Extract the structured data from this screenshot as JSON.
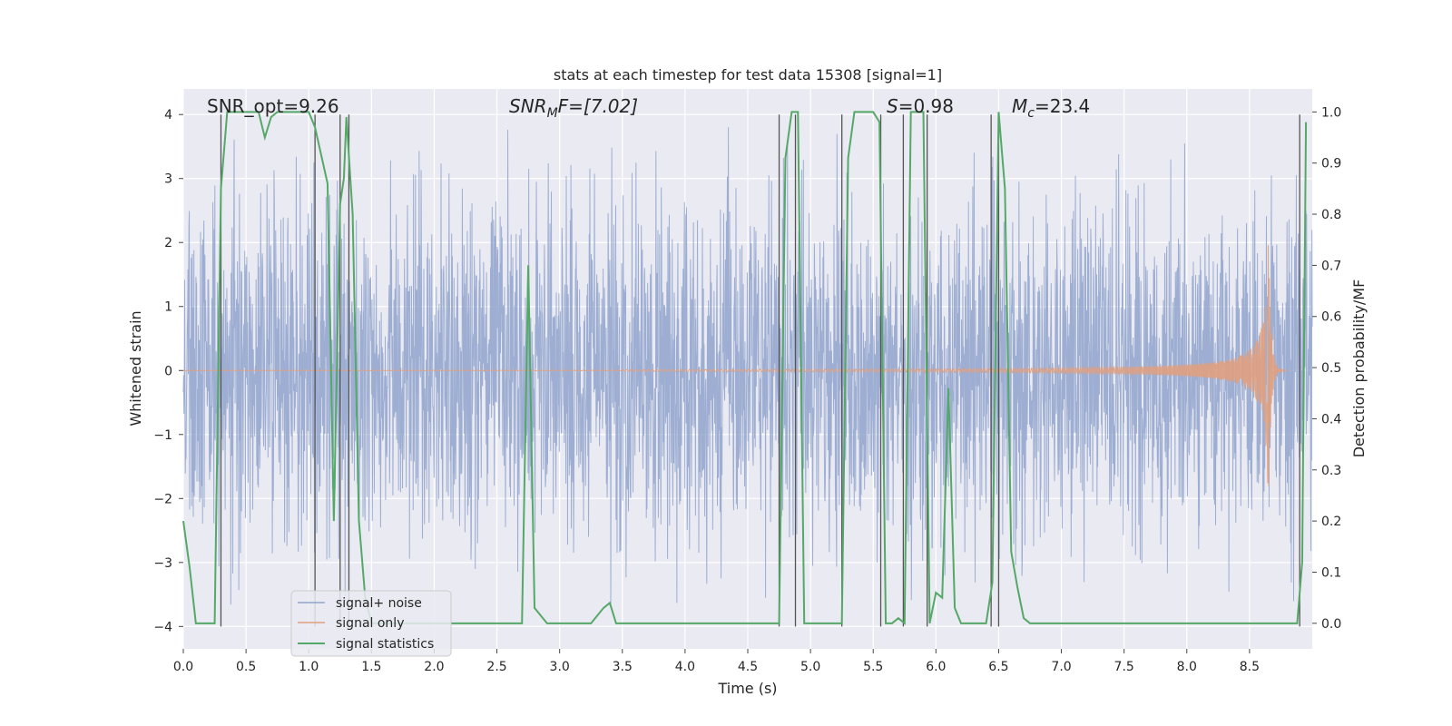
{
  "chart_data": {
    "type": "line",
    "title": "stats at each timestep for test data 15308 [signal=1]",
    "xlabel": "Time (s)",
    "ylabel": "Whitened strain",
    "ylabel_right": "Detection probability/MF",
    "xlim": [
      0.0,
      9.0
    ],
    "ylim": [
      -4.35,
      4.4
    ],
    "ylim_right": [
      -0.05,
      1.045
    ],
    "xticks": [
      "0.0",
      "0.5",
      "1.0",
      "1.5",
      "2.0",
      "2.5",
      "3.0",
      "3.5",
      "4.0",
      "4.5",
      "5.0",
      "5.5",
      "6.0",
      "6.5",
      "7.0",
      "7.5",
      "8.0",
      "8.5"
    ],
    "xtick_values": [
      0.0,
      0.5,
      1.0,
      1.5,
      2.0,
      2.5,
      3.0,
      3.5,
      4.0,
      4.5,
      5.0,
      5.5,
      6.0,
      6.5,
      7.0,
      7.5,
      8.0,
      8.5
    ],
    "yticks": [
      "4",
      "3",
      "2",
      "1",
      "0",
      "−1",
      "−2",
      "−3",
      "−4"
    ],
    "ytick_values": [
      4,
      3,
      2,
      1,
      0,
      -1,
      -2,
      -3,
      -4
    ],
    "yticks_right": [
      "1.0",
      "0.9",
      "0.8",
      "0.7",
      "0.6",
      "0.5",
      "0.4",
      "0.3",
      "0.2",
      "0.1",
      "0.0"
    ],
    "ytick_right_values": [
      1.0,
      0.9,
      0.8,
      0.7,
      0.6,
      0.5,
      0.4,
      0.3,
      0.2,
      0.1,
      0.0
    ],
    "annotations": {
      "snr_opt": "SNR_opt=9.26",
      "snr_mf_base": "SNR",
      "snr_mf_sub": "M",
      "snr_mf_rest": "F=[7.02]",
      "s_italic": "S",
      "s_rest": "=0.98",
      "mc_base": "M",
      "mc_sub": "c",
      "mc_rest": "=23.4"
    },
    "legend": {
      "position": "lower-left",
      "entries": [
        "signal+ noise",
        "signal only",
        "signal statistics"
      ]
    },
    "colors": {
      "noise": "#8fa3cc",
      "signal": "#e0a080",
      "stats": "#55a868",
      "vlines": "#555555",
      "plot_bg": "#eaeaf2",
      "grid": "#ffffff"
    },
    "series": [
      {
        "name": "signal statistics",
        "axis": "right",
        "x": [
          0.0,
          0.05,
          0.1,
          0.15,
          0.25,
          0.3,
          0.35,
          0.4,
          0.45,
          0.5,
          0.55,
          0.6,
          0.65,
          0.7,
          0.75,
          0.8,
          0.85,
          0.95,
          1.0,
          1.05,
          1.15,
          1.2,
          1.25,
          1.28,
          1.3,
          1.35,
          1.4,
          1.45,
          1.5,
          1.6,
          1.8,
          2.0,
          2.5,
          2.6,
          2.7,
          2.75,
          2.8,
          2.9,
          3.0,
          3.25,
          3.35,
          3.4,
          3.45,
          3.5,
          4.0,
          4.5,
          4.7,
          4.75,
          4.8,
          4.85,
          4.9,
          4.95,
          5.0,
          5.2,
          5.25,
          5.3,
          5.35,
          5.4,
          5.5,
          5.55,
          5.6,
          5.65,
          5.7,
          5.75,
          5.8,
          5.85,
          5.9,
          5.95,
          6.0,
          6.05,
          6.1,
          6.15,
          6.2,
          6.3,
          6.4,
          6.45,
          6.5,
          6.55,
          6.6,
          6.65,
          6.7,
          6.75,
          7.0,
          7.5,
          8.0,
          8.5,
          8.88,
          8.92,
          8.95
        ],
        "values": [
          0.2,
          0.11,
          0.0,
          0.0,
          0.0,
          0.85,
          1.0,
          1.0,
          1.0,
          1.0,
          1.0,
          1.0,
          0.95,
          0.99,
          1.0,
          1.0,
          1.0,
          1.0,
          1.0,
          0.97,
          0.86,
          0.2,
          0.82,
          0.87,
          0.99,
          0.8,
          0.2,
          0.05,
          0.0,
          0.0,
          0.0,
          0.0,
          0.0,
          0.0,
          0.0,
          0.7,
          0.03,
          0.0,
          0.0,
          0.0,
          0.03,
          0.04,
          0.0,
          0.0,
          0.0,
          0.0,
          0.0,
          0.0,
          0.91,
          1.0,
          1.0,
          0.0,
          0.0,
          0.0,
          0.0,
          0.91,
          1.0,
          1.0,
          1.0,
          0.98,
          0.0,
          0.0,
          0.01,
          0.0,
          1.0,
          1.0,
          1.0,
          0.0,
          0.06,
          0.05,
          0.46,
          0.03,
          0.0,
          0.0,
          0.0,
          0.08,
          1.0,
          0.85,
          0.14,
          0.07,
          0.01,
          0.0,
          0.0,
          0.0,
          0.0,
          0.0,
          0.0,
          0.12,
          0.98
        ]
      },
      {
        "name": "signal only",
        "axis": "left",
        "description": "chirp: near-zero until ~4.5 s, amplitude grows to ~2.2 at merger ~8.65 s, ringdown to 0 by ~8.75 s",
        "merger_time": 8.65,
        "peak_amplitude": 2.2
      },
      {
        "name": "signal+ noise",
        "axis": "left",
        "description": "dense whitened noise band, typical envelope ±2.4, peaks ±3.8",
        "envelope": 2.4,
        "max_abs": 3.8
      }
    ],
    "vlines_x": [
      0.3,
      1.05,
      1.25,
      1.32,
      4.75,
      4.88,
      5.25,
      5.56,
      5.74,
      5.93,
      6.44,
      6.5,
      8.9
    ]
  }
}
